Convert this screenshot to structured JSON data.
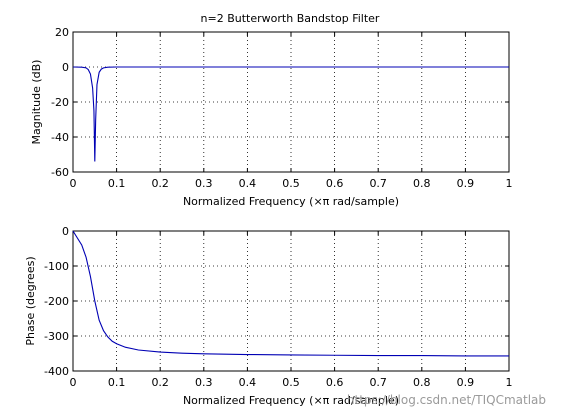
{
  "chart_data": [
    {
      "type": "line",
      "title": "n=2 Butterworth Bandstop Filter",
      "xlabel": "Normalized Frequency  (×π rad/sample)",
      "ylabel": "Magnitude (dB)",
      "xlim": [
        0,
        1
      ],
      "ylim": [
        -60,
        20
      ],
      "xticks": [
        "0",
        "0.1",
        "0.2",
        "0.3",
        "0.4",
        "0.5",
        "0.6",
        "0.7",
        "0.8",
        "0.9",
        "1"
      ],
      "xtick_values": [
        0,
        0.1,
        0.2,
        0.3,
        0.4,
        0.5,
        0.6,
        0.7,
        0.8,
        0.9,
        1
      ],
      "yticks": [
        "20",
        "0",
        "-20",
        "-40",
        "-60"
      ],
      "ytick_values": [
        20,
        0,
        -20,
        -40,
        -60
      ],
      "grid": true,
      "line_color": "#0000b4",
      "series": [
        {
          "x": [
            0,
            0.02,
            0.03,
            0.035,
            0.04,
            0.045,
            0.048,
            0.05,
            0.052,
            0.055,
            0.06,
            0.065,
            0.07,
            0.08,
            0.1,
            0.2,
            0.4,
            0.6,
            0.8,
            0.99,
            1
          ],
          "y": [
            0,
            -0.1,
            -0.5,
            -1.5,
            -4,
            -12,
            -25,
            -54,
            -30,
            -10,
            -3,
            -1.2,
            -0.5,
            -0.1,
            0,
            0,
            0,
            0,
            0,
            0,
            0
          ]
        }
      ]
    },
    {
      "type": "line",
      "title": "",
      "xlabel": "Normalized Frequency  (×π rad/sample)",
      "ylabel": "Phase (degrees)",
      "xlim": [
        0,
        1
      ],
      "ylim": [
        -400,
        0
      ],
      "xticks": [
        "0",
        "0.1",
        "0.2",
        "0.3",
        "0.4",
        "0.5",
        "0.6",
        "0.7",
        "0.8",
        "0.9",
        "1"
      ],
      "xtick_values": [
        0,
        0.1,
        0.2,
        0.3,
        0.4,
        0.5,
        0.6,
        0.7,
        0.8,
        0.9,
        1
      ],
      "yticks": [
        "0",
        "-100",
        "-200",
        "-300",
        "-400"
      ],
      "ytick_values": [
        0,
        -100,
        -200,
        -300,
        -400
      ],
      "grid": true,
      "line_color": "#0000b4",
      "series": [
        {
          "x": [
            0,
            0.01,
            0.02,
            0.03,
            0.04,
            0.05,
            0.06,
            0.07,
            0.08,
            0.09,
            0.1,
            0.12,
            0.15,
            0.2,
            0.25,
            0.3,
            0.4,
            0.5,
            0.6,
            0.7,
            0.8,
            0.9,
            1
          ],
          "y": [
            0,
            -20,
            -40,
            -75,
            -130,
            -200,
            -255,
            -285,
            -303,
            -315,
            -322,
            -332,
            -340,
            -346,
            -349,
            -351,
            -353,
            -354,
            -355,
            -356,
            -356,
            -357,
            -357
          ]
        }
      ]
    }
  ],
  "watermark": "https://blog.csdn.net/TIQCmatlab"
}
